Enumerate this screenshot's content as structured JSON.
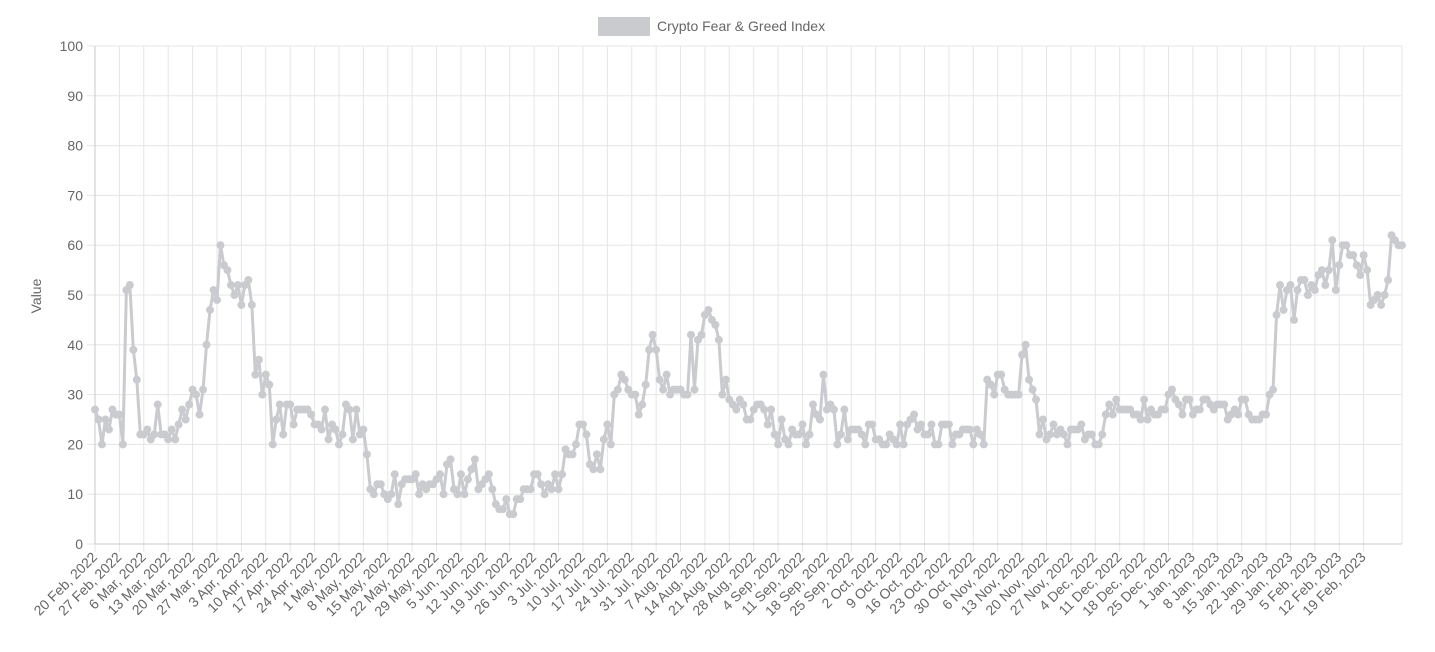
{
  "chart_data": {
    "type": "line",
    "title": "",
    "xlabel": "",
    "ylabel": "Value",
    "ylim": [
      0,
      100
    ],
    "y_ticks": [
      "0",
      "10",
      "20",
      "30",
      "40",
      "50",
      "60",
      "70",
      "80",
      "90",
      "100"
    ],
    "grid": true,
    "legend_position": "top-center",
    "colors": {
      "series": "#c9cbcf",
      "grid": "#e5e5e5",
      "text": "#666666"
    },
    "x_ticks": [
      "20 Feb, 2022",
      "27 Feb, 2022",
      "6 Mar, 2022",
      "13 Mar, 2022",
      "20 Mar, 2022",
      "27 Mar, 2022",
      "3 Apr, 2022",
      "10 Apr, 2022",
      "17 Apr, 2022",
      "24 Apr, 2022",
      "1 May, 2022",
      "8 May, 2022",
      "15 May, 2022",
      "22 May, 2022",
      "29 May, 2022",
      "5 Jun, 2022",
      "12 Jun, 2022",
      "19 Jun, 2022",
      "26 Jun, 2022",
      "3 Jul, 2022",
      "10 Jul, 2022",
      "17 Jul, 2022",
      "24 Jul, 2022",
      "31 Jul, 2022",
      "7 Aug, 2022",
      "14 Aug, 2022",
      "21 Aug, 2022",
      "28 Aug, 2022",
      "4 Sep, 2022",
      "11 Sep, 2022",
      "18 Sep, 2022",
      "25 Sep, 2022",
      "2 Oct, 2022",
      "9 Oct, 2022",
      "16 Oct, 2022",
      "23 Oct, 2022",
      "30 Oct, 2022",
      "6 Nov, 2022",
      "13 Nov, 2022",
      "20 Nov, 2022",
      "27 Nov, 2022",
      "4 Dec, 2022",
      "11 Dec, 2022",
      "18 Dec, 2022",
      "25 Dec, 2022",
      "1 Jan, 2023",
      "8 Jan, 2023",
      "15 Jan, 2023",
      "22 Jan, 2023",
      "29 Jan, 2023",
      "5 Feb, 2023",
      "12 Feb, 2023",
      "19 Feb, 2023"
    ],
    "series": [
      {
        "name": "Crypto Fear & Greed Index",
        "values": [
          27,
          25,
          20,
          25,
          23,
          27,
          26,
          26,
          20,
          51,
          52,
          39,
          33,
          22,
          22,
          23,
          21,
          22,
          28,
          22,
          22,
          21,
          23,
          21,
          24,
          27,
          25,
          28,
          31,
          30,
          26,
          31,
          40,
          47,
          51,
          49,
          60,
          56,
          55,
          52,
          50,
          52,
          48,
          52,
          53,
          48,
          34,
          37,
          30,
          34,
          32,
          20,
          25,
          28,
          22,
          28,
          28,
          24,
          27,
          27,
          27,
          27,
          26,
          24,
          24,
          23,
          27,
          21,
          24,
          23,
          20,
          22,
          28,
          27,
          21,
          27,
          22,
          23,
          18,
          11,
          10,
          12,
          12,
          10,
          9,
          10,
          14,
          8,
          12,
          13,
          13,
          13,
          14,
          10,
          12,
          11,
          12,
          12,
          13,
          14,
          10,
          16,
          17,
          11,
          10,
          14,
          10,
          13,
          15,
          17,
          11,
          12,
          13,
          14,
          11,
          8,
          7,
          7,
          9,
          6,
          6,
          9,
          9,
          11,
          11,
          11,
          14,
          14,
          12,
          10,
          12,
          11,
          14,
          11,
          14,
          19,
          18,
          18,
          20,
          24,
          24,
          22,
          16,
          15,
          18,
          15,
          21,
          24,
          20,
          30,
          31,
          34,
          33,
          31,
          30,
          30,
          26,
          28,
          32,
          39,
          42,
          39,
          33,
          31,
          34,
          30,
          31,
          31,
          31,
          30,
          30,
          42,
          31,
          41,
          42,
          46,
          47,
          45,
          44,
          41,
          30,
          33,
          29,
          28,
          27,
          29,
          28,
          25,
          25,
          27,
          28,
          28,
          27,
          24,
          27,
          22,
          20,
          25,
          21,
          20,
          23,
          22,
          22,
          24,
          20,
          22,
          28,
          26,
          25,
          34,
          27,
          28,
          27,
          20,
          22,
          27,
          21,
          23,
          23,
          23,
          22,
          20,
          24,
          24,
          21,
          21,
          20,
          20,
          22,
          21,
          20,
          24,
          20,
          24,
          25,
          26,
          23,
          24,
          22,
          22,
          24,
          20,
          20,
          24,
          24,
          24,
          20,
          22,
          22,
          23,
          23,
          23,
          20,
          23,
          22,
          20,
          33,
          32,
          30,
          34,
          34,
          31,
          30,
          30,
          30,
          30,
          38,
          40,
          33,
          31,
          29,
          22,
          25,
          21,
          22,
          24,
          22,
          23,
          22,
          20,
          23,
          23,
          23,
          24,
          21,
          22,
          22,
          20,
          20,
          22,
          26,
          28,
          26,
          29,
          27,
          27,
          27,
          27,
          26,
          26,
          25,
          29,
          25,
          27,
          26,
          26,
          27,
          27,
          30,
          31,
          29,
          28,
          26,
          29,
          29,
          26,
          27,
          27,
          29,
          29,
          28,
          27,
          28,
          28,
          28,
          25,
          26,
          27,
          26,
          29,
          29,
          26,
          25,
          25,
          25,
          26,
          26,
          30,
          31,
          46,
          52,
          47,
          51,
          52,
          45,
          51,
          53,
          53,
          50,
          52,
          51,
          54,
          55,
          52,
          55,
          61,
          51,
          56,
          60,
          60,
          58,
          58,
          56,
          54,
          58,
          55,
          48,
          49,
          50,
          48,
          50,
          53,
          62,
          61,
          60,
          60
        ]
      }
    ]
  }
}
